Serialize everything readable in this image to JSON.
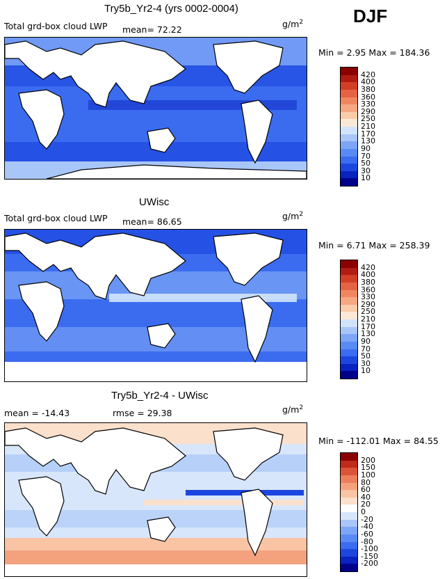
{
  "season": "DJF",
  "units_prefix": "g/m",
  "units_exp": "2",
  "panels": [
    {
      "title": "Try5b_Yr2-4 (yrs 0002-0004)",
      "label_left": "Total grd-box cloud LWP",
      "label_mean": "mean=  72.22",
      "minmax": "Min =    2.95  Max = 184.36"
    },
    {
      "title": "UWisc",
      "label_left": "Total grd-box cloud LWP",
      "label_mean": "mean=  86.65",
      "minmax": "Min =    6.71  Max = 258.39"
    },
    {
      "title": "Try5b_Yr2-4 - UWisc",
      "label_left": "mean = -14.43",
      "label_mean": "rmse =  29.38",
      "minmax": "Min = -112.01  Max =  84.55"
    }
  ],
  "chart_data": [
    {
      "type": "heatmap",
      "title": "Try5b_Yr2-4 (yrs 0002-0004)",
      "variable": "Total grd-box cloud LWP",
      "mean": 72.22,
      "min": 2.95,
      "max": 184.36,
      "colorbar_levels": [
        "10",
        "30",
        "50",
        "70",
        "90",
        "130",
        "170",
        "210",
        "250",
        "290",
        "330",
        "360",
        "380",
        "400",
        "420"
      ],
      "colorbar_colors": [
        "#00008b",
        "#0a22c0",
        "#1d46e0",
        "#3b6cf0",
        "#5a8af4",
        "#7ea6f6",
        "#a9c6f8",
        "#d2e4fb",
        "#fbe9d8",
        "#f9ccaa",
        "#f6a882",
        "#f08660",
        "#e56342",
        "#d23f26",
        "#b01c10",
        "#8b0000"
      ]
    },
    {
      "type": "heatmap",
      "title": "UWisc",
      "variable": "Total grd-box cloud LWP",
      "mean": 86.65,
      "min": 6.71,
      "max": 258.39,
      "colorbar_levels": [
        "10",
        "30",
        "50",
        "70",
        "90",
        "130",
        "170",
        "210",
        "250",
        "290",
        "330",
        "360",
        "380",
        "400",
        "420"
      ],
      "colorbar_colors": [
        "#00008b",
        "#0a22c0",
        "#1d46e0",
        "#3b6cf0",
        "#5a8af4",
        "#7ea6f6",
        "#a9c6f8",
        "#d2e4fb",
        "#fbe9d8",
        "#f9ccaa",
        "#f6a882",
        "#f08660",
        "#e56342",
        "#d23f26",
        "#b01c10",
        "#8b0000"
      ]
    },
    {
      "type": "heatmap",
      "title": "Try5b_Yr2-4 - UWisc",
      "mean": -14.43,
      "rmse": 29.38,
      "min": -112.01,
      "max": 84.55,
      "colorbar_levels": [
        "-200",
        "-150",
        "-100",
        "-80",
        "-60",
        "-40",
        "-20",
        "0",
        "20",
        "40",
        "60",
        "80",
        "100",
        "150",
        "200"
      ],
      "colorbar_colors": [
        "#00008b",
        "#0a22c0",
        "#1d46e0",
        "#3b6cf0",
        "#5a8af4",
        "#7ea6f6",
        "#a9c6f8",
        "#d8e6fb",
        "#ffffff",
        "#fbe0cc",
        "#f9c4a4",
        "#f4a27e",
        "#ec7e5c",
        "#dc5438",
        "#c02a18",
        "#8b0000"
      ]
    }
  ]
}
